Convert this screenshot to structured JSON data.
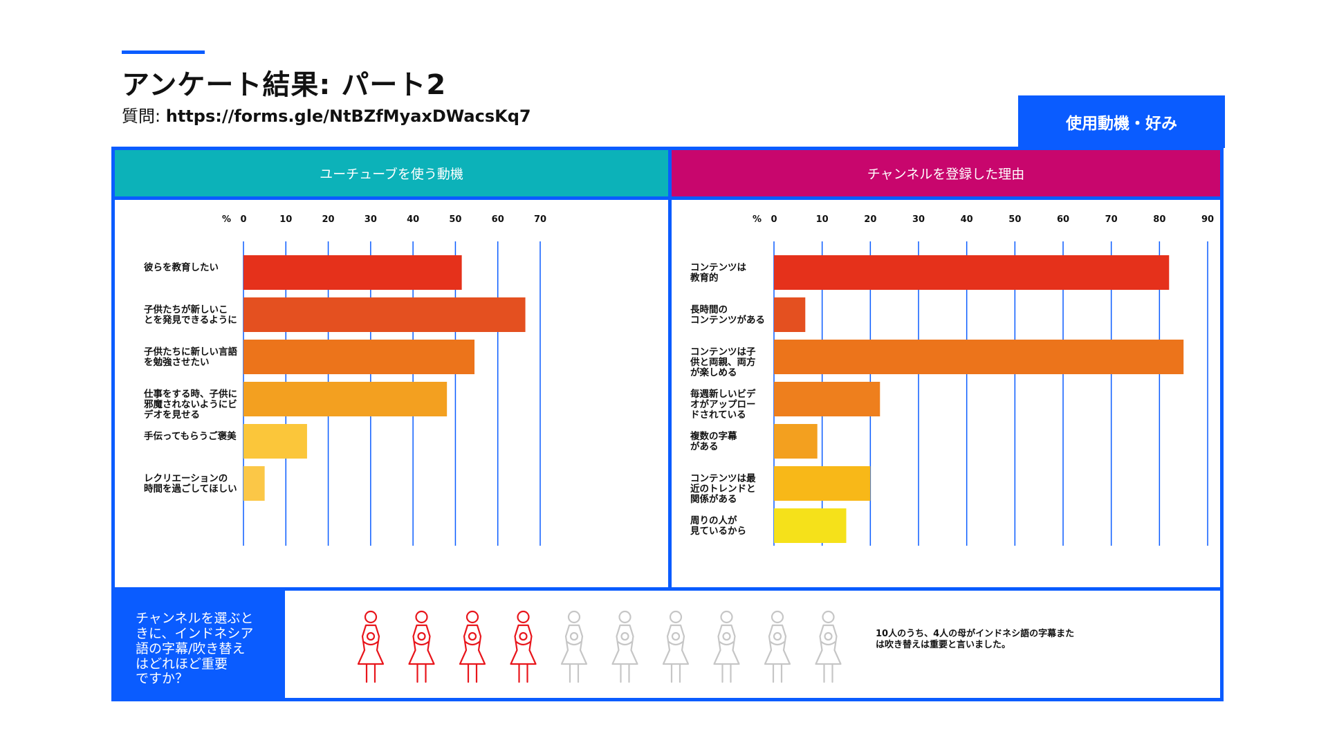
{
  "header": {
    "title": "アンケート結果: パート2",
    "subtitle_prefix": "質問:",
    "subtitle_link": "https://forms.gle/NtBZfMyaxDWacsKq7",
    "tag": "使用動機・好み"
  },
  "colors": {
    "accent": "#0a5cff",
    "left_header": "#0cb2b9",
    "right_header": "#c8066d",
    "icon_highlight": "#e8151b",
    "icon_muted": "#c6c6c6"
  },
  "chart_data": [
    {
      "type": "bar",
      "orientation": "horizontal",
      "title": "ユーチューブを使う動機",
      "xlabel": "%",
      "xlim": [
        0,
        70
      ],
      "ticks": [
        0,
        10,
        20,
        30,
        40,
        50,
        60,
        70
      ],
      "grid": true,
      "categories": [
        "彼らを教育したい",
        "子供たちが新しいこ\nとを発見できるように",
        "子供たちに新しい言語\nを勉強させたい",
        "仕事をする時、子供に\n邪魔されないようにビ\nデオを見せる",
        "手伝ってもらうご褒美",
        "レクリエーションの\n時間を過ごしてほしい"
      ],
      "values": [
        51.5,
        66.5,
        54.5,
        48,
        15,
        5
      ],
      "bar_colors": [
        "#e5311b",
        "#e45020",
        "#ec741b",
        "#f3a020",
        "#fbc63a",
        "#fbc747"
      ]
    },
    {
      "type": "bar",
      "orientation": "horizontal",
      "title": "チャンネルを登録した理由",
      "xlabel": "%",
      "xlim": [
        0,
        90
      ],
      "ticks": [
        0,
        10,
        20,
        30,
        40,
        50,
        60,
        70,
        80,
        90
      ],
      "grid": true,
      "categories": [
        "コンテンツは\n教育的",
        "長時間の\nコンテンツがある",
        "コンテンツは子\n供と両親、両方\nが楽しめる",
        "毎週新しいビデ\nオがアップロー\nドされている",
        "複数の字幕\nがある",
        "コンテンツは最\n近のトレンドと\n関係がある",
        "周りの人が\n見ているから"
      ],
      "values": [
        82,
        6.5,
        85,
        22,
        9,
        20,
        15
      ],
      "bar_colors": [
        "#e5311b",
        "#e45020",
        "#ec741b",
        "#ee7f1d",
        "#f3a01f",
        "#f8b818",
        "#f5e11a"
      ]
    }
  ],
  "bottom": {
    "question": "チャンネルを選ぶと\nきに、インドネシア\n語の字幕/吹き替え\nはどれほど重要\nですか？",
    "highlighted": 4,
    "total": 10,
    "statement": "10人のうち、4人の母がインドネシ語の字幕または吹き替えは重要と言いました。"
  }
}
